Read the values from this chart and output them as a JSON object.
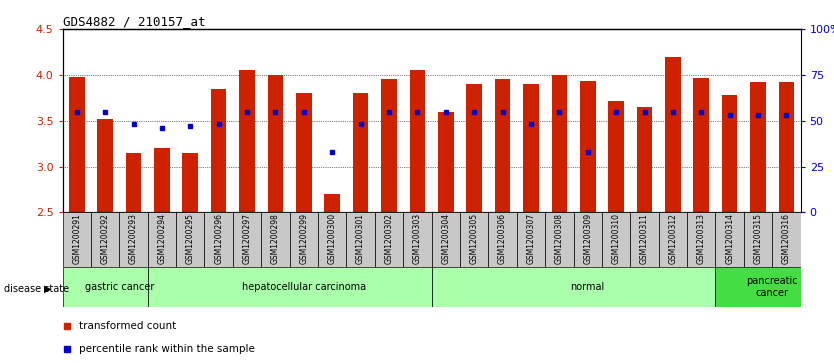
{
  "title": "GDS4882 / 210157_at",
  "samples": [
    "GSM1200291",
    "GSM1200292",
    "GSM1200293",
    "GSM1200294",
    "GSM1200295",
    "GSM1200296",
    "GSM1200297",
    "GSM1200298",
    "GSM1200299",
    "GSM1200300",
    "GSM1200301",
    "GSM1200302",
    "GSM1200303",
    "GSM1200304",
    "GSM1200305",
    "GSM1200306",
    "GSM1200307",
    "GSM1200308",
    "GSM1200309",
    "GSM1200310",
    "GSM1200311",
    "GSM1200312",
    "GSM1200313",
    "GSM1200314",
    "GSM1200315",
    "GSM1200316"
  ],
  "transformed_count": [
    3.98,
    3.52,
    3.15,
    3.2,
    3.15,
    3.85,
    4.05,
    4.0,
    3.8,
    2.7,
    3.8,
    3.95,
    4.05,
    3.6,
    3.9,
    3.95,
    3.9,
    4.0,
    3.93,
    3.72,
    3.65,
    4.2,
    3.97,
    3.78,
    3.92,
    3.92
  ],
  "percentile_rank": [
    55,
    55,
    48,
    46,
    47,
    48,
    55,
    55,
    55,
    33,
    48,
    55,
    55,
    55,
    55,
    55,
    48,
    55,
    33,
    55,
    55,
    55,
    55,
    53,
    53,
    53
  ],
  "group_boundaries": [
    {
      "label": "gastric cancer",
      "start": 0,
      "end": 3,
      "light": true
    },
    {
      "label": "hepatocellular carcinoma",
      "start": 3,
      "end": 13,
      "light": true
    },
    {
      "label": "normal",
      "start": 13,
      "end": 23,
      "light": true
    },
    {
      "label": "pancreatic\ncancer",
      "start": 23,
      "end": 26,
      "light": false
    }
  ],
  "ylim": [
    2.5,
    4.5
  ],
  "yticks_left": [
    2.5,
    3.0,
    3.5,
    4.0,
    4.5
  ],
  "yticks_right_vals": [
    0,
    25,
    50,
    75,
    100
  ],
  "yticks_right_labels": [
    "0",
    "25",
    "50",
    "75",
    "100%"
  ],
  "bar_color": "#cc2200",
  "marker_color": "#0000cc",
  "light_green": "#aaffaa",
  "dark_green": "#44dd44",
  "gray_bg": "#c8c8c8"
}
